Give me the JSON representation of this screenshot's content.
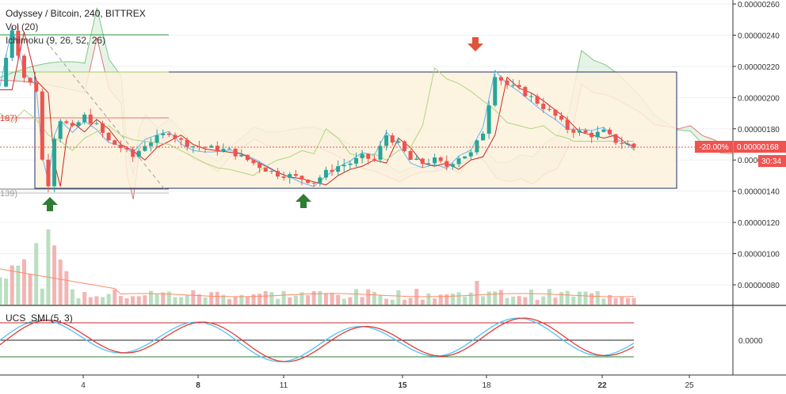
{
  "header": {
    "symbol_line": "Odyssey / Bitcoin, 240, BITTREX",
    "vol_label": "Vol (20)",
    "ichimoku_label": "Ichimoku (9, 26, 52, 26)",
    "ucs_label": "UCS_SMI (5, 3)"
  },
  "colors": {
    "up": "#26a69a",
    "down": "#ef5350",
    "box_fill": "#fdf1dc",
    "box_stroke": "#1f2f6b",
    "cloud_up": "#c8e6c9",
    "cloud_down": "#f7c6c0",
    "price_tag": "#ef5350",
    "arrow_up": "#2e7d32",
    "arrow_down": "#e0533a"
  },
  "left_markers": [
    "187)",
    "139)"
  ],
  "price_tag": {
    "pct": "-20.00%",
    "price": "0.00000168",
    "countdown": "30:34"
  },
  "chart_data": {
    "type": "candlestick",
    "y_axis": {
      "ticks": [
        "0.00000260",
        "0.00000240",
        "0.00000220",
        "0.00000200",
        "0.00000180",
        "0.00000160",
        "0.00000140",
        "0.00000120",
        "0.00000100",
        "0.00000080"
      ],
      "range": [
        6.6e-07,
        2.62e-06
      ]
    },
    "smi_axis": {
      "ticks": [
        "0.0000"
      ]
    },
    "x_axis": {
      "ticks": [
        "4",
        "8",
        "11",
        "15",
        "18",
        "22",
        "25"
      ],
      "bold": [
        "8",
        "15",
        "22"
      ]
    },
    "last_price": 1.68e-06,
    "series": [
      {
        "name": "price",
        "points": [
          [
            0,
            207
          ],
          [
            2,
            244
          ],
          [
            4,
            213
          ],
          [
            6,
            205
          ],
          [
            7,
            160
          ],
          [
            8,
            145
          ],
          [
            9,
            175
          ],
          [
            10,
            186
          ],
          [
            12,
            180
          ],
          [
            14,
            188
          ],
          [
            16,
            182
          ],
          [
            18,
            172
          ],
          [
            20,
            168
          ],
          [
            22,
            162
          ],
          [
            24,
            170
          ],
          [
            26,
            174
          ],
          [
            28,
            178
          ],
          [
            30,
            172
          ],
          [
            32,
            169
          ],
          [
            34,
            168
          ],
          [
            36,
            167
          ],
          [
            38,
            166
          ],
          [
            40,
            162
          ],
          [
            42,
            158
          ],
          [
            44,
            154
          ],
          [
            46,
            151
          ],
          [
            48,
            150
          ],
          [
            50,
            148
          ],
          [
            52,
            146
          ],
          [
            54,
            152
          ],
          [
            56,
            156
          ],
          [
            58,
            158
          ],
          [
            60,
            162
          ],
          [
            62,
            160
          ],
          [
            64,
            176
          ],
          [
            66,
            170
          ],
          [
            68,
            160
          ],
          [
            70,
            158
          ],
          [
            72,
            160
          ],
          [
            74,
            156
          ],
          [
            76,
            162
          ],
          [
            78,
            164
          ],
          [
            80,
            178
          ],
          [
            82,
            215
          ],
          [
            84,
            208
          ],
          [
            86,
            205
          ],
          [
            88,
            200
          ],
          [
            90,
            194
          ],
          [
            92,
            188
          ],
          [
            94,
            180
          ],
          [
            96,
            178
          ],
          [
            98,
            176
          ],
          [
            100,
            178
          ],
          [
            102,
            172
          ],
          [
            104,
            170
          ],
          [
            105,
            168
          ]
        ]
      }
    ],
    "annotations": [
      "box",
      "buy-arrow-1",
      "buy-arrow-2",
      "sell-arrow"
    ]
  }
}
